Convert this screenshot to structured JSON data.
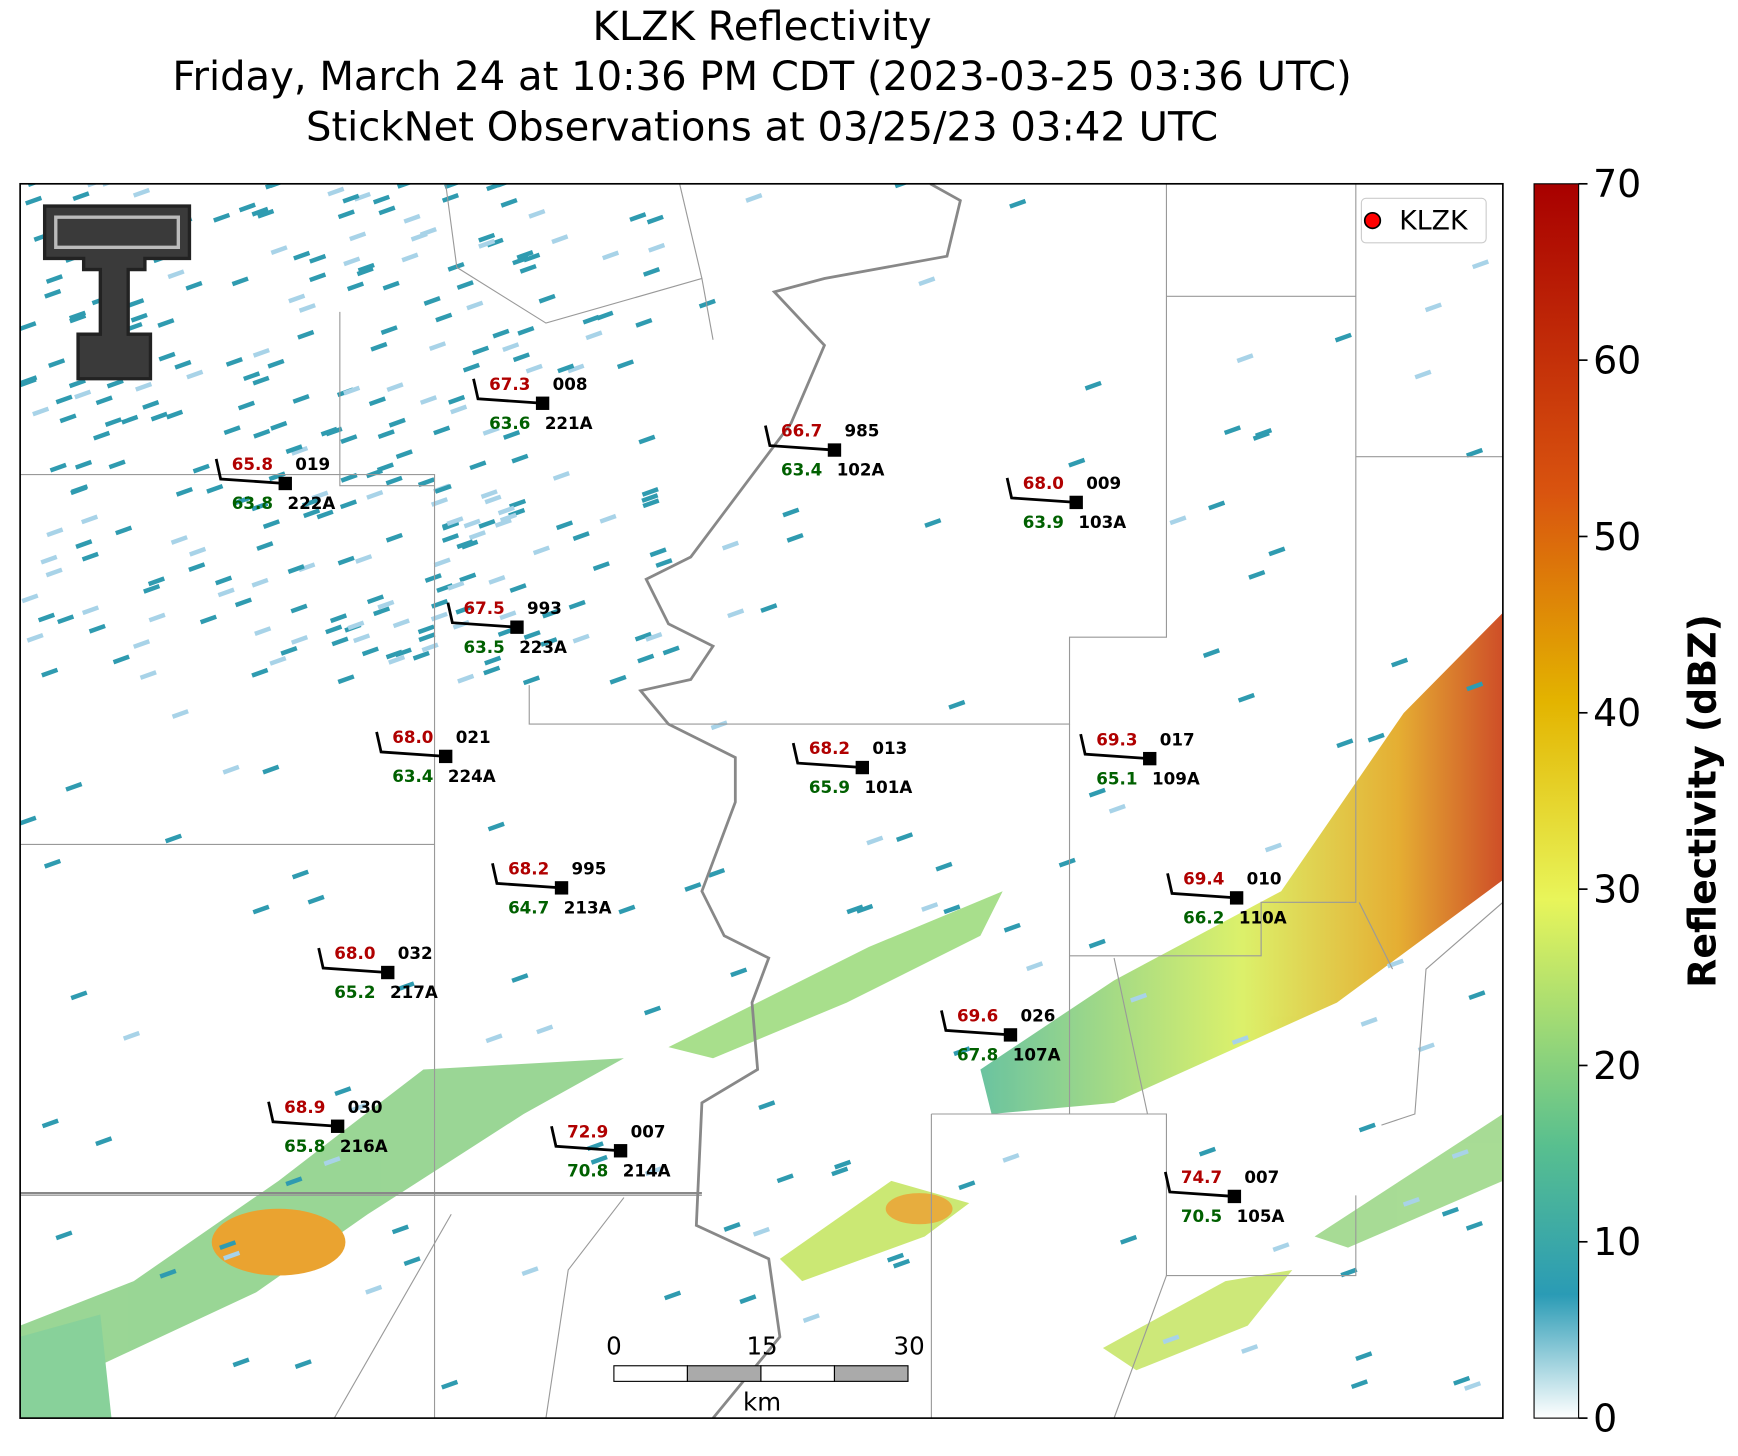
{
  "header": {
    "title": "KLZK Reflectivity",
    "subtitle": "Friday, March 24 at 10:36 PM CDT (2023-03-25 03:36 UTC)",
    "observations": "StickNet Observations at 03/25/23 03:42 UTC"
  },
  "legend": {
    "label": "KLZK",
    "color": "#ff0000"
  },
  "colorbar": {
    "label": "Reflectivity (dBZ)",
    "lim": [
      0,
      70
    ],
    "ticks": [
      0,
      10,
      20,
      30,
      40,
      50,
      60,
      70
    ]
  },
  "scale_bar": {
    "ticks": [
      "0",
      "15",
      "30"
    ],
    "unit": "km"
  },
  "stations": [
    {
      "id": "221A",
      "temperature": "67.3",
      "dewpoint": "63.6",
      "pressure": "008"
    },
    {
      "id": "222A",
      "temperature": "65.8",
      "dewpoint": "63.8",
      "pressure": "019"
    },
    {
      "id": "102A",
      "temperature": "66.7",
      "dewpoint": "63.4",
      "pressure": "985"
    },
    {
      "id": "103A",
      "temperature": "68.0",
      "dewpoint": "63.9",
      "pressure": "009"
    },
    {
      "id": "223A",
      "temperature": "67.5",
      "dewpoint": "63.5",
      "pressure": "993"
    },
    {
      "id": "224A",
      "temperature": "68.0",
      "dewpoint": "63.4",
      "pressure": "021"
    },
    {
      "id": "101A",
      "temperature": "68.2",
      "dewpoint": "65.9",
      "pressure": "013"
    },
    {
      "id": "109A",
      "temperature": "69.3",
      "dewpoint": "65.1",
      "pressure": "017"
    },
    {
      "id": "213A",
      "temperature": "68.2",
      "dewpoint": "64.7",
      "pressure": "995"
    },
    {
      "id": "110A",
      "temperature": "69.4",
      "dewpoint": "66.2",
      "pressure": "010"
    },
    {
      "id": "217A",
      "temperature": "68.0",
      "dewpoint": "65.2",
      "pressure": "032"
    },
    {
      "id": "107A",
      "temperature": "69.6",
      "dewpoint": "67.8",
      "pressure": "026"
    },
    {
      "id": "216A",
      "temperature": "68.9",
      "dewpoint": "65.8",
      "pressure": "030"
    },
    {
      "id": "214A",
      "temperature": "72.9",
      "dewpoint": "70.8",
      "pressure": "007"
    },
    {
      "id": "105A",
      "temperature": "74.7",
      "dewpoint": "70.5",
      "pressure": "007"
    }
  ]
}
